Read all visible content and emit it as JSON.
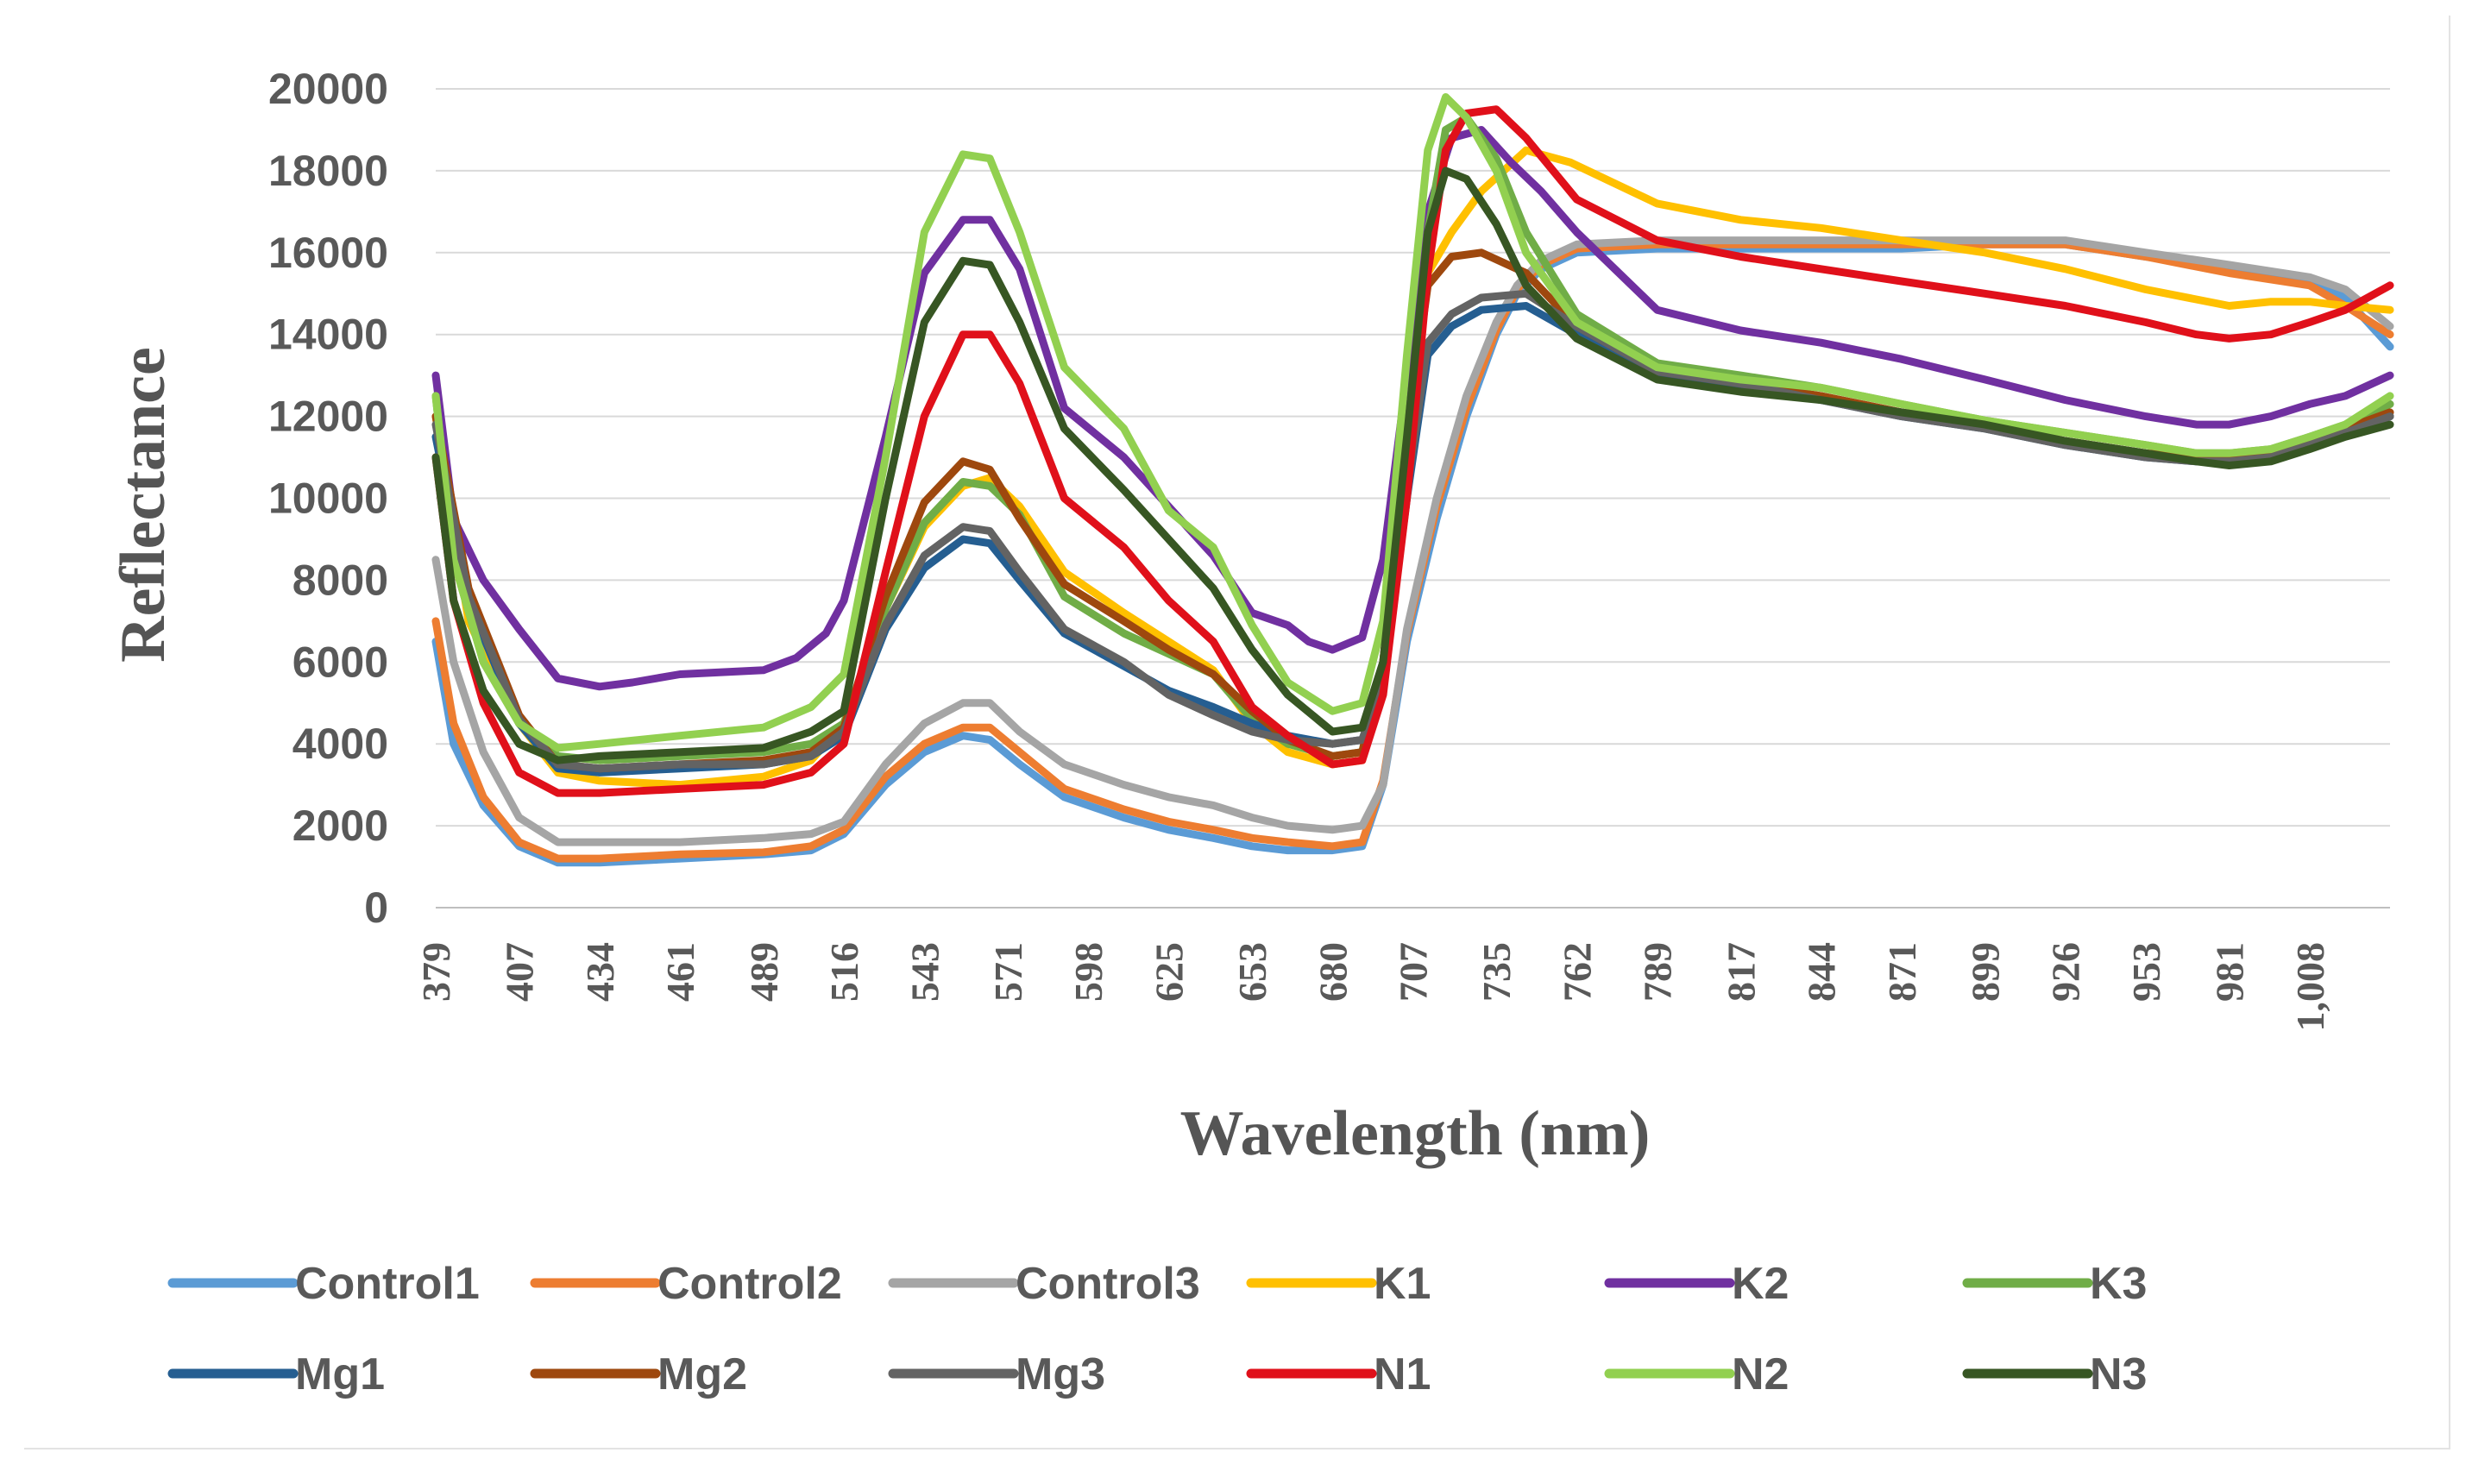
{
  "chart_data": {
    "type": "line",
    "title": "",
    "xlabel": "Wavelength (nm)",
    "ylabel": "Reflectance",
    "xlim": [
      379,
      1035
    ],
    "ylim": [
      0,
      20000
    ],
    "yticks": [
      0,
      2000,
      4000,
      6000,
      8000,
      10000,
      12000,
      14000,
      16000,
      18000,
      20000
    ],
    "ytick_labels": [
      "0",
      "2000",
      "4000",
      "6000",
      "8000",
      "10000",
      "12000",
      "14000",
      "16000",
      "18000",
      "20000"
    ],
    "xticks": [
      379,
      407,
      434,
      461,
      489,
      516,
      543,
      571,
      598,
      625,
      653,
      680,
      707,
      735,
      762,
      789,
      817,
      844,
      871,
      899,
      926,
      953,
      981,
      1008
    ],
    "xtick_labels": [
      "379",
      "407",
      "434",
      "461",
      "489",
      "516",
      "543",
      "571",
      "598",
      "625",
      "653",
      "680",
      "707",
      "735",
      "762",
      "789",
      "817",
      "844",
      "871",
      "899",
      "926",
      "953",
      "981",
      "1,008"
    ],
    "grid": true,
    "legend_position": "bottom",
    "series": [
      {
        "name": "Control1",
        "color": "#5b9bd5",
        "x": [
          379,
          385,
          395,
          407,
          420,
          434,
          461,
          489,
          505,
          516,
          530,
          543,
          556,
          565,
          575,
          590,
          610,
          625,
          640,
          653,
          665,
          680,
          690,
          697,
          705,
          715,
          725,
          735,
          742,
          750,
          762,
          789,
          817,
          844,
          871,
          899,
          926,
          953,
          981,
          1008,
          1020,
          1035
        ],
        "y": [
          6500,
          4000,
          2500,
          1500,
          1100,
          1100,
          1200,
          1300,
          1400,
          1800,
          3000,
          3800,
          4200,
          4100,
          3500,
          2700,
          2200,
          1900,
          1700,
          1500,
          1400,
          1400,
          1500,
          3000,
          6500,
          9500,
          12000,
          14000,
          15000,
          15600,
          16000,
          16100,
          16100,
          16100,
          16100,
          16200,
          16200,
          15900,
          15600,
          15300,
          14900,
          13700
        ]
      },
      {
        "name": "Control2",
        "color": "#ed7d31",
        "x": [
          379,
          385,
          395,
          407,
          420,
          434,
          461,
          489,
          505,
          516,
          530,
          543,
          556,
          565,
          575,
          590,
          610,
          625,
          640,
          653,
          665,
          680,
          690,
          697,
          705,
          715,
          725,
          735,
          742,
          750,
          762,
          789,
          817,
          844,
          871,
          899,
          926,
          953,
          981,
          1008,
          1020,
          1035
        ],
        "y": [
          7000,
          4500,
          2700,
          1600,
          1200,
          1200,
          1300,
          1350,
          1500,
          1900,
          3200,
          4000,
          4400,
          4400,
          3800,
          2900,
          2400,
          2100,
          1900,
          1700,
          1600,
          1500,
          1600,
          3100,
          6700,
          9800,
          12200,
          14100,
          15100,
          15700,
          16100,
          16200,
          16200,
          16200,
          16200,
          16200,
          16200,
          15900,
          15500,
          15200,
          14700,
          14000
        ]
      },
      {
        "name": "Control3",
        "color": "#a5a5a5",
        "x": [
          379,
          385,
          395,
          407,
          420,
          434,
          461,
          489,
          505,
          516,
          530,
          543,
          556,
          565,
          575,
          590,
          610,
          625,
          640,
          653,
          665,
          680,
          690,
          697,
          705,
          715,
          725,
          735,
          742,
          750,
          762,
          789,
          817,
          844,
          871,
          899,
          926,
          953,
          981,
          1008,
          1020,
          1035
        ],
        "y": [
          8500,
          6000,
          3800,
          2200,
          1600,
          1600,
          1600,
          1700,
          1800,
          2100,
          3500,
          4500,
          5000,
          5000,
          4300,
          3500,
          3000,
          2700,
          2500,
          2200,
          2000,
          1900,
          2000,
          3000,
          6800,
          10000,
          12500,
          14300,
          15200,
          15800,
          16200,
          16300,
          16300,
          16300,
          16300,
          16300,
          16300,
          16000,
          15700,
          15400,
          15100,
          14200
        ]
      },
      {
        "name": "K1",
        "color": "#ffc000",
        "x": [
          379,
          390,
          407,
          420,
          434,
          461,
          489,
          505,
          516,
          530,
          543,
          556,
          565,
          575,
          590,
          610,
          625,
          640,
          653,
          665,
          680,
          690,
          697,
          705,
          712,
          720,
          730,
          745,
          760,
          789,
          817,
          844,
          871,
          899,
          926,
          953,
          981,
          995,
          1008,
          1020,
          1035
        ],
        "y": [
          12000,
          7000,
          4500,
          3300,
          3100,
          3000,
          3200,
          3600,
          4500,
          7300,
          9300,
          10300,
          10500,
          9800,
          8200,
          7200,
          6500,
          5800,
          4500,
          3800,
          3500,
          3600,
          6000,
          11000,
          15500,
          16500,
          17500,
          18500,
          18200,
          17200,
          16800,
          16600,
          16300,
          16000,
          15600,
          15100,
          14700,
          14800,
          14800,
          14700,
          14600
        ]
      },
      {
        "name": "K2",
        "color": "#7030a0",
        "x": [
          379,
          385,
          395,
          407,
          420,
          434,
          445,
          461,
          489,
          500,
          510,
          516,
          530,
          543,
          556,
          565,
          575,
          590,
          610,
          625,
          640,
          653,
          665,
          672,
          680,
          690,
          697,
          705,
          712,
          720,
          730,
          740,
          750,
          762,
          789,
          817,
          844,
          871,
          899,
          926,
          953,
          970,
          981,
          995,
          1008,
          1020,
          1035
        ],
        "y": [
          13000,
          9500,
          8000,
          6800,
          5600,
          5400,
          5500,
          5700,
          5800,
          6100,
          6700,
          7500,
          11500,
          15500,
          16800,
          16800,
          15600,
          12200,
          11000,
          9800,
          8600,
          7200,
          6900,
          6500,
          6300,
          6600,
          8500,
          13000,
          17000,
          18800,
          19000,
          18200,
          17500,
          16500,
          14600,
          14100,
          13800,
          13400,
          12900,
          12400,
          12000,
          11800,
          11800,
          12000,
          12300,
          12500,
          13000
        ]
      },
      {
        "name": "K3",
        "color": "#70ad47",
        "x": [
          379,
          385,
          395,
          407,
          420,
          434,
          461,
          489,
          505,
          516,
          530,
          543,
          556,
          565,
          575,
          590,
          610,
          625,
          640,
          653,
          665,
          680,
          690,
          697,
          705,
          712,
          718,
          725,
          735,
          745,
          762,
          789,
          817,
          844,
          871,
          899,
          926,
          953,
          970,
          981,
          995,
          1008,
          1020,
          1035
        ],
        "y": [
          12500,
          8500,
          6000,
          4500,
          3700,
          3600,
          3700,
          3800,
          4000,
          4500,
          7300,
          9400,
          10400,
          10300,
          9600,
          7600,
          6700,
          6200,
          5700,
          4600,
          4000,
          3700,
          3800,
          6000,
          11000,
          16500,
          19000,
          19300,
          18300,
          16500,
          14500,
          13300,
          13000,
          12700,
          12300,
          11900,
          11600,
          11300,
          11100,
          11100,
          11200,
          11500,
          11800,
          12300
        ]
      },
      {
        "name": "Mg1",
        "color": "#255e91",
        "x": [
          379,
          390,
          407,
          420,
          434,
          461,
          489,
          505,
          516,
          530,
          543,
          556,
          565,
          575,
          590,
          610,
          625,
          640,
          653,
          665,
          680,
          690,
          697,
          705,
          712,
          720,
          730,
          745,
          762,
          789,
          817,
          844,
          871,
          899,
          926,
          953,
          970,
          981,
          995,
          1008,
          1020,
          1035
        ],
        "y": [
          11500,
          7500,
          4500,
          3400,
          3300,
          3400,
          3500,
          3700,
          4200,
          6800,
          8300,
          9000,
          8900,
          8000,
          6700,
          5900,
          5300,
          4900,
          4500,
          4200,
          4000,
          4100,
          5500,
          10000,
          13500,
          14200,
          14600,
          14700,
          14000,
          13000,
          12700,
          12400,
          12000,
          11700,
          11300,
          11000,
          10900,
          10900,
          11000,
          11300,
          11600,
          12000
        ]
      },
      {
        "name": "Mg2",
        "color": "#9e480e",
        "x": [
          379,
          390,
          407,
          420,
          434,
          461,
          489,
          505,
          516,
          530,
          543,
          556,
          565,
          575,
          590,
          610,
          625,
          640,
          653,
          665,
          680,
          690,
          697,
          705,
          712,
          720,
          730,
          745,
          762,
          789,
          817,
          844,
          871,
          899,
          926,
          953,
          970,
          981,
          995,
          1008,
          1020,
          1035
        ],
        "y": [
          12000,
          7800,
          4700,
          3500,
          3400,
          3500,
          3600,
          3800,
          4400,
          7600,
          9900,
          10900,
          10700,
          9500,
          7900,
          7000,
          6300,
          5700,
          4800,
          4100,
          3700,
          3800,
          6000,
          11500,
          15200,
          15900,
          16000,
          15500,
          14200,
          13100,
          12800,
          12500,
          12100,
          11800,
          11400,
          11100,
          11000,
          11000,
          11100,
          11400,
          11700,
          12100
        ]
      },
      {
        "name": "Mg3",
        "color": "#636363",
        "x": [
          379,
          390,
          407,
          420,
          434,
          461,
          489,
          505,
          516,
          530,
          543,
          556,
          565,
          575,
          590,
          610,
          625,
          640,
          653,
          665,
          680,
          690,
          697,
          705,
          712,
          720,
          730,
          745,
          762,
          789,
          817,
          844,
          871,
          899,
          926,
          953,
          970,
          981,
          995,
          1008,
          1020,
          1035
        ],
        "y": [
          11800,
          7600,
          4600,
          3500,
          3400,
          3500,
          3500,
          3700,
          4300,
          6900,
          8600,
          9300,
          9200,
          8200,
          6800,
          6000,
          5200,
          4700,
          4300,
          4100,
          4000,
          4100,
          5600,
          10200,
          13800,
          14500,
          14900,
          15000,
          14200,
          13100,
          12800,
          12400,
          12000,
          11700,
          11300,
          11000,
          10900,
          10900,
          11000,
          11300,
          11600,
          12000
        ]
      },
      {
        "name": "N1",
        "color": "#e0101a",
        "x": [
          379,
          385,
          395,
          407,
          420,
          434,
          461,
          489,
          505,
          516,
          530,
          543,
          556,
          565,
          575,
          590,
          610,
          625,
          640,
          653,
          665,
          680,
          690,
          697,
          705,
          712,
          718,
          725,
          735,
          745,
          762,
          789,
          817,
          844,
          871,
          899,
          926,
          953,
          970,
          981,
          995,
          1008,
          1020,
          1035
        ],
        "y": [
          11000,
          7500,
          5000,
          3300,
          2800,
          2800,
          2900,
          3000,
          3300,
          4000,
          8200,
          12000,
          14000,
          14000,
          12800,
          10000,
          8800,
          7500,
          6500,
          4900,
          4200,
          3500,
          3600,
          5200,
          10000,
          15500,
          18500,
          19400,
          19500,
          18800,
          17300,
          16300,
          15900,
          15600,
          15300,
          15000,
          14700,
          14300,
          14000,
          13900,
          14000,
          14300,
          14600,
          15200
        ]
      },
      {
        "name": "N2",
        "color": "#92d050",
        "x": [
          379,
          385,
          395,
          407,
          420,
          434,
          461,
          489,
          505,
          516,
          530,
          543,
          556,
          565,
          575,
          590,
          610,
          625,
          640,
          653,
          665,
          680,
          690,
          697,
          705,
          712,
          718,
          725,
          735,
          745,
          762,
          789,
          817,
          844,
          871,
          899,
          926,
          953,
          970,
          981,
          995,
          1008,
          1020,
          1035
        ],
        "y": [
          12500,
          8500,
          6000,
          4500,
          3900,
          4000,
          4200,
          4400,
          4900,
          5700,
          11000,
          16500,
          18400,
          18300,
          16500,
          13200,
          11700,
          9700,
          8800,
          6900,
          5500,
          4800,
          5000,
          7000,
          13500,
          18500,
          19800,
          19300,
          18000,
          16000,
          14300,
          13200,
          12900,
          12700,
          12300,
          11900,
          11600,
          11300,
          11100,
          11100,
          11200,
          11500,
          11800,
          12500
        ]
      },
      {
        "name": "N3",
        "color": "#375623",
        "x": [
          379,
          385,
          395,
          407,
          420,
          434,
          461,
          489,
          505,
          516,
          530,
          543,
          556,
          565,
          575,
          590,
          610,
          625,
          640,
          653,
          665,
          680,
          690,
          697,
          705,
          712,
          718,
          725,
          735,
          745,
          762,
          789,
          817,
          844,
          871,
          899,
          926,
          953,
          970,
          981,
          995,
          1008,
          1020,
          1035
        ],
        "y": [
          11000,
          7500,
          5300,
          4000,
          3600,
          3700,
          3800,
          3900,
          4300,
          4800,
          10000,
          14300,
          15800,
          15700,
          14300,
          11700,
          10200,
          9000,
          7800,
          6300,
          5200,
          4300,
          4400,
          6000,
          11500,
          16500,
          18000,
          17800,
          16700,
          15200,
          13900,
          12900,
          12600,
          12400,
          12100,
          11800,
          11400,
          11100,
          10900,
          10800,
          10900,
          11200,
          11500,
          11800
        ]
      }
    ]
  }
}
